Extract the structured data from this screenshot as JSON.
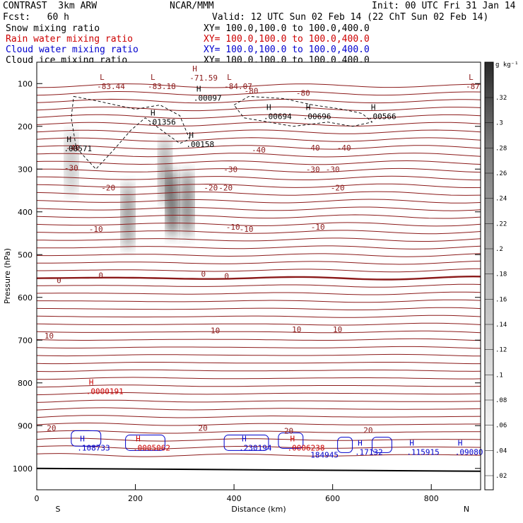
{
  "header": {
    "model": "CONTRAST  3km ARW",
    "org": "NCAR/MMM",
    "init": "Init: 00 UTC Fri 31 Jan 14",
    "fcst": "Fcst:   60 h",
    "valid": "Valid: 12 UTC Sun 02 Feb 14 (22 ChT Sun 02 Feb 14)",
    "fields": [
      {
        "name": "Snow mixing ratio",
        "xy": "XY= 100.0,100.0 to 100.0,400.0",
        "color": "#000000"
      },
      {
        "name": "Rain water mixing ratio",
        "xy": "XY= 100.0,100.0 to 100.0,400.0",
        "color": "#cc0000"
      },
      {
        "name": "Cloud water mixing ratio",
        "xy": "XY= 100.0,100.0 to 100.0,400.0",
        "color": "#0000cc"
      },
      {
        "name": "Cloud ice mixing ratio",
        "xy": "XY= 100.0,100.0 to 100.0,400.0",
        "color": "#000000"
      }
    ]
  },
  "chart_data": {
    "type": "contour cross-section",
    "xlabel": "Distance (km)",
    "ylabel": "Pressure (hPa)",
    "x_ticks": [
      0,
      200,
      400,
      600,
      800
    ],
    "xlim": [
      0,
      900
    ],
    "y_ticks": [
      100,
      200,
      300,
      400,
      500,
      600,
      700,
      800,
      900,
      1000
    ],
    "ylim": [
      50,
      1050
    ],
    "y_scale": "linear",
    "x_end_labels": {
      "left": "S",
      "right": "N"
    },
    "colorbar": {
      "unit": "g kg⁻¹",
      "levels": [
        ".32",
        ".3",
        ".28",
        ".26",
        ".24",
        ".22",
        ".2",
        ".18",
        ".16",
        ".14",
        ".12",
        ".1",
        ".08",
        ".06",
        ".04",
        ".02"
      ],
      "range": [
        0,
        0.34
      ]
    },
    "temperature_contours": {
      "color": "#8b1a1a",
      "labels": [
        {
          "text": "-80",
          "x": 540,
          "p": 122
        },
        {
          "text": "-80",
          "x": 435,
          "p": 117
        },
        {
          "text": "-40",
          "x": 73,
          "p": 250
        },
        {
          "text": "-40",
          "x": 450,
          "p": 255
        },
        {
          "text": "-40",
          "x": 560,
          "p": 250
        },
        {
          "text": "-40",
          "x": 623,
          "p": 250
        },
        {
          "text": "-30",
          "x": 70,
          "p": 297
        },
        {
          "text": "-30",
          "x": 393,
          "p": 300
        },
        {
          "text": "-30",
          "x": 560,
          "p": 300
        },
        {
          "text": "-30",
          "x": 600,
          "p": 300
        },
        {
          "text": "-20",
          "x": 145,
          "p": 343
        },
        {
          "text": "-20",
          "x": 353,
          "p": 343
        },
        {
          "text": "-20",
          "x": 383,
          "p": 343
        },
        {
          "text": "-20",
          "x": 610,
          "p": 343
        },
        {
          "text": "-10",
          "x": 120,
          "p": 440
        },
        {
          "text": "-10",
          "x": 398,
          "p": 435
        },
        {
          "text": "-10",
          "x": 425,
          "p": 440
        },
        {
          "text": "-10",
          "x": 570,
          "p": 435
        },
        {
          "text": "0",
          "x": 45,
          "p": 560
        },
        {
          "text": "0",
          "x": 130,
          "p": 548
        },
        {
          "text": "0",
          "x": 338,
          "p": 545
        },
        {
          "text": "0",
          "x": 385,
          "p": 550
        },
        {
          "text": "10",
          "x": 25,
          "p": 690
        },
        {
          "text": "10",
          "x": 362,
          "p": 677
        },
        {
          "text": "10",
          "x": 527,
          "p": 675
        },
        {
          "text": "10",
          "x": 610,
          "p": 675
        },
        {
          "text": "20",
          "x": 30,
          "p": 905
        },
        {
          "text": "20",
          "x": 337,
          "p": 905
        },
        {
          "text": "20",
          "x": 511,
          "p": 912
        },
        {
          "text": "20",
          "x": 672,
          "p": 910
        }
      ]
    },
    "extrema": [
      {
        "mark": "L",
        "value": "-83.44",
        "x": 122,
        "p": 95,
        "color": "#8b1a1a"
      },
      {
        "mark": "L",
        "value": "-83.18",
        "x": 225,
        "p": 95,
        "color": "#8b1a1a"
      },
      {
        "mark": "H",
        "value": "-71.59",
        "x": 310,
        "p": 75,
        "color": "#8b1a1a"
      },
      {
        "mark": "L",
        "value": "-84.07",
        "x": 380,
        "p": 95,
        "color": "#8b1a1a"
      },
      {
        "mark": "L",
        "value": "-87",
        "x": 870,
        "p": 95,
        "color": "#8b1a1a"
      },
      {
        "mark": "H",
        "value": ".00097",
        "x": 318,
        "p": 122,
        "color": "#000000"
      },
      {
        "mark": "H",
        "value": ".01356",
        "x": 225,
        "p": 178,
        "color": "#000000"
      },
      {
        "mark": "H",
        "value": ".00694",
        "x": 460,
        "p": 165,
        "color": "#000000"
      },
      {
        "mark": "H",
        "value": ".00696",
        "x": 540,
        "p": 165,
        "color": "#000000"
      },
      {
        "mark": "H",
        "value": ".00566",
        "x": 672,
        "p": 165,
        "color": "#000000"
      },
      {
        "mark": "H",
        "value": ".00571",
        "x": 55,
        "p": 240,
        "color": "#000000"
      },
      {
        "mark": "H",
        "value": ".00158",
        "x": 303,
        "p": 230,
        "color": "#000000"
      },
      {
        "mark": "H",
        "value": ".0000191",
        "x": 100,
        "p": 808,
        "color": "#cc0000"
      },
      {
        "mark": "H",
        "value": ".108733",
        "x": 82,
        "p": 940,
        "color": "#0000cc"
      },
      {
        "mark": "H",
        "value": ".0005062",
        "x": 195,
        "p": 940,
        "color": "#cc0000"
      },
      {
        "mark": "H",
        "value": ".230194",
        "x": 410,
        "p": 940,
        "color": "#0000cc"
      },
      {
        "mark": "H",
        "value": ".0006238",
        "x": 508,
        "p": 940,
        "color": "#cc0000"
      },
      {
        "mark": "",
        "value": "184945",
        "x": 555,
        "p": 957,
        "color": "#0000cc"
      },
      {
        "mark": "H",
        "value": ".17132",
        "x": 645,
        "p": 950,
        "color": "#0000cc"
      },
      {
        "mark": "H",
        "value": ".115915",
        "x": 750,
        "p": 950,
        "color": "#0000cc"
      },
      {
        "mark": "H",
        "value": ".09080",
        "x": 848,
        "p": 950,
        "color": "#0000cc"
      }
    ],
    "cloud_ice_shading": [
      {
        "x": 70,
        "p": 285,
        "intensity": 0.12
      },
      {
        "x": 185,
        "p": 410,
        "intensity": 0.22
      },
      {
        "x": 260,
        "p": 305,
        "intensity": 0.18
      },
      {
        "x": 275,
        "p": 380,
        "intensity": 0.32
      },
      {
        "x": 305,
        "p": 380,
        "intensity": 0.26
      }
    ],
    "surface_pressure": 1000
  }
}
